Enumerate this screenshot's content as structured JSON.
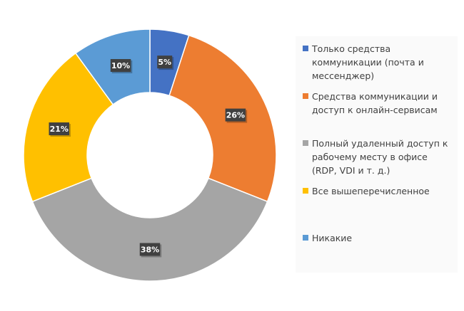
{
  "chart_data": {
    "type": "pie",
    "donut": true,
    "categories": [
      "Только средства коммуникации (почта и мессенджер)",
      "Средства коммуникации и доступ к онлайн-сервисам",
      "Полный удаленный доступ к рабочему месту в офисе (RDP, VDI и т. д.)",
      "Все вышеперечисленное",
      "Никакие"
    ],
    "values": [
      5,
      26,
      38,
      21,
      10
    ],
    "data_labels": [
      "5%",
      "26%",
      "38%",
      "21%",
      "10%"
    ],
    "colors": [
      "#4472C4",
      "#ED7D31",
      "#A5A5A5",
      "#FFC000",
      "#5B9BD5"
    ],
    "legend_placement": "right"
  }
}
